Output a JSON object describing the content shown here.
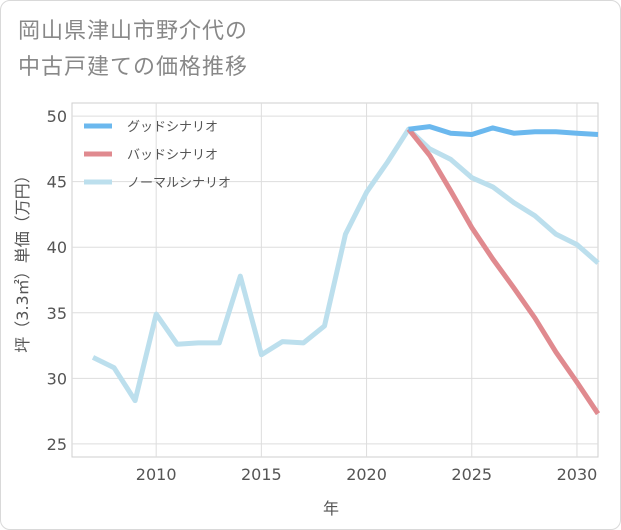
{
  "title_lines": [
    "岡山県津山市野介代の",
    "中古戸建ての価格推移"
  ],
  "chart_data": {
    "type": "line",
    "xlabel": "年",
    "ylabel": "坪（3.3㎡）単価（万円）",
    "xlim": [
      2006,
      2031
    ],
    "ylim": [
      24,
      51
    ],
    "xticks": [
      2010,
      2015,
      2020,
      2025,
      2030
    ],
    "yticks": [
      25,
      30,
      35,
      40,
      45,
      50
    ],
    "grid": true,
    "legend_position": "top-left",
    "series": [
      {
        "name": "グッドシナリオ",
        "color": "#6bb8ee",
        "x": [
          2022,
          2023,
          2024,
          2025,
          2026,
          2027,
          2028,
          2029,
          2030,
          2031
        ],
        "values": [
          49.0,
          49.2,
          48.7,
          48.6,
          49.1,
          48.7,
          48.8,
          48.8,
          48.7,
          48.6
        ]
      },
      {
        "name": "バッドシナリオ",
        "color": "#e08a8f",
        "x": [
          2022,
          2023,
          2024,
          2025,
          2026,
          2027,
          2028,
          2029,
          2030,
          2031
        ],
        "values": [
          49.0,
          47.0,
          44.3,
          41.5,
          39.1,
          36.9,
          34.6,
          32.0,
          29.7,
          27.3
        ]
      },
      {
        "name": "ノーマルシナリオ",
        "color": "#bcdfed",
        "x": [
          2007,
          2008,
          2009,
          2010,
          2011,
          2012,
          2013,
          2014,
          2015,
          2016,
          2017,
          2018,
          2019,
          2020,
          2021,
          2022,
          2023,
          2024,
          2025,
          2026,
          2027,
          2028,
          2029,
          2030,
          2031
        ],
        "values": [
          31.6,
          30.8,
          28.3,
          34.9,
          32.6,
          32.7,
          32.7,
          37.8,
          31.8,
          32.8,
          32.7,
          34.0,
          41.0,
          44.2,
          46.5,
          49.0,
          47.5,
          46.7,
          45.3,
          44.6,
          43.4,
          42.4,
          41.0,
          40.2,
          38.8
        ]
      }
    ]
  }
}
